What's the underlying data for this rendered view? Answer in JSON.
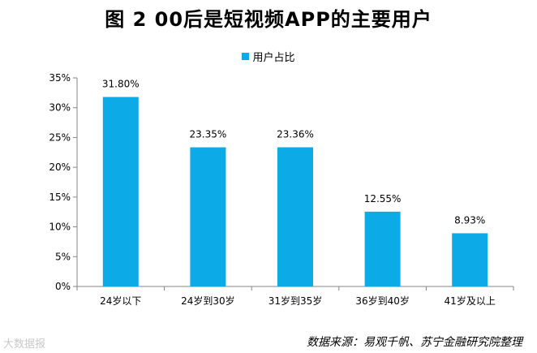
{
  "chart_data": {
    "type": "bar",
    "title": "图 2  00后是短视频APP的主要用户",
    "categories": [
      "24岁以下",
      "24岁到30岁",
      "31岁到35岁",
      "36岁到40岁",
      "41岁及以上"
    ],
    "series": [
      {
        "name": "用户占比",
        "values": [
          31.8,
          23.35,
          23.36,
          12.55,
          8.93
        ],
        "labels": [
          "31.80%",
          "23.35%",
          "23.36%",
          "12.55%",
          "8.93%"
        ]
      }
    ],
    "y_ticks": [
      "0%",
      "5%",
      "10%",
      "15%",
      "20%",
      "25%",
      "30%",
      "35%"
    ],
    "ylim": [
      0,
      35
    ],
    "xlabel": "",
    "ylabel": "",
    "legend_position": "top-center",
    "grid": false
  },
  "colors": {
    "bar": "#0cabe8",
    "axis": "#868686"
  },
  "watermark": "大数据报",
  "source": "数据来源：易观千帆、苏宁金融研究院整理"
}
